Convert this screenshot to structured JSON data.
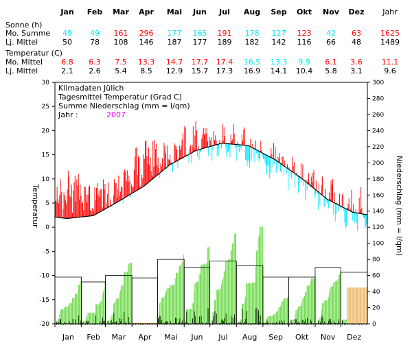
{
  "colors": {
    "warm": "#ff0000",
    "cold": "#00e5ff",
    "precip_sum": "#33cc00",
    "precip_daily": "#000000",
    "precip_future": "#e69a28",
    "year_label": "#e600e6",
    "mean_line": "#000000"
  },
  "table": {
    "months": [
      "Jan",
      "Feb",
      "Mar",
      "Apr",
      "Mai",
      "Jun",
      "Jul",
      "Aug",
      "Sep",
      "Okt",
      "Nov",
      "Dez"
    ],
    "year_label": "Jahr",
    "sun_header": "Sonne (h)",
    "sun_mo_label": "Mo. Summe",
    "sun_mo": [
      "49",
      "49",
      "161",
      "296",
      "177",
      "165",
      "191",
      "178",
      "127",
      "123",
      "42",
      "63"
    ],
    "sun_mo_year": "1625",
    "sun_mo_colors": [
      "cold",
      "cold",
      "warm",
      "warm",
      "cold",
      "cold",
      "warm",
      "cold",
      "cold",
      "warm",
      "cold",
      "warm"
    ],
    "sun_lj_label": "Lj. Mittel",
    "sun_lj": [
      "50",
      "78",
      "108",
      "146",
      "187",
      "177",
      "189",
      "182",
      "142",
      "116",
      "66",
      "48"
    ],
    "sun_lj_year": "1489",
    "temp_header": "Temperatur (C)",
    "temp_mo_label": "Mo. Mittel",
    "temp_mo": [
      "6.8",
      "6.3",
      "7.5",
      "13.3",
      "14.7",
      "17.7",
      "17.4",
      "16.5",
      "13.3",
      "9.9",
      "6.1",
      "3.6"
    ],
    "temp_mo_year": "11.1",
    "temp_mo_colors": [
      "warm",
      "warm",
      "warm",
      "warm",
      "warm",
      "warm",
      "warm",
      "cold",
      "cold",
      "cold",
      "warm",
      "warm"
    ],
    "temp_lj_label": "Lj. Mittel",
    "temp_lj": [
      "2.1",
      "2.6",
      "5.4",
      "8.5",
      "12.9",
      "15.7",
      "17.3",
      "16.9",
      "14.1",
      "10.4",
      "5.8",
      "3.1"
    ],
    "temp_lj_year": "9.6"
  },
  "chart_data": {
    "type": "bar",
    "legend_lines": [
      "Klimadaten Jülich",
      "Tagesmittel Temperatur (Grad C)",
      "Summe Niederschlag (mm = l/qm)"
    ],
    "year_label": "Jahr :",
    "year": "2007",
    "ylabel_left": "Temperatur",
    "ylabel_right": "Niederschlag (mm = l/qm)",
    "ylim_left": [
      -20,
      30
    ],
    "ylim_right": [
      0,
      300
    ],
    "yticks_left": [
      "30",
      "25",
      "20",
      "15",
      "10",
      "5",
      "0",
      "-5",
      "-10",
      "-15",
      "-20"
    ],
    "yticks_right": [
      "300",
      "280",
      "260",
      "240",
      "220",
      "200",
      "180",
      "160",
      "140",
      "120",
      "100",
      "80",
      "60",
      "40",
      "20",
      "0"
    ],
    "xticks": [
      "Jan",
      "Feb",
      "Mar",
      "Apr",
      "Mai",
      "Jun",
      "Jul",
      "Aug",
      "Sep",
      "Okt",
      "Nov",
      "Dez"
    ],
    "days": 365,
    "temperature_monthly_mean": [
      6.8,
      6.3,
      7.5,
      13.3,
      14.7,
      17.7,
      17.4,
      16.5,
      13.3,
      9.9,
      6.1,
      3.6
    ],
    "longterm_daily_mean_anchors": {
      "day": [
        1,
        15,
        46,
        74,
        105,
        135,
        166,
        196,
        227,
        258,
        288,
        319,
        349,
        365
      ],
      "value": [
        2.1,
        1.8,
        2.4,
        5.2,
        8.5,
        12.9,
        15.9,
        17.4,
        16.9,
        14.0,
        10.3,
        5.8,
        3.1,
        2.6
      ]
    },
    "precipitation_monthly_total": [
      57,
      53,
      76,
      1,
      86,
      96,
      112,
      121,
      34,
      58,
      65,
      45
    ],
    "precipitation_longterm_monthly": [
      58,
      52,
      60,
      57,
      80,
      70,
      78,
      72,
      58,
      58,
      70,
      64
    ],
    "precipitation_future_portion": {
      "months": [
        "Apr",
        "Dez"
      ],
      "values": [
        1,
        45
      ]
    }
  }
}
